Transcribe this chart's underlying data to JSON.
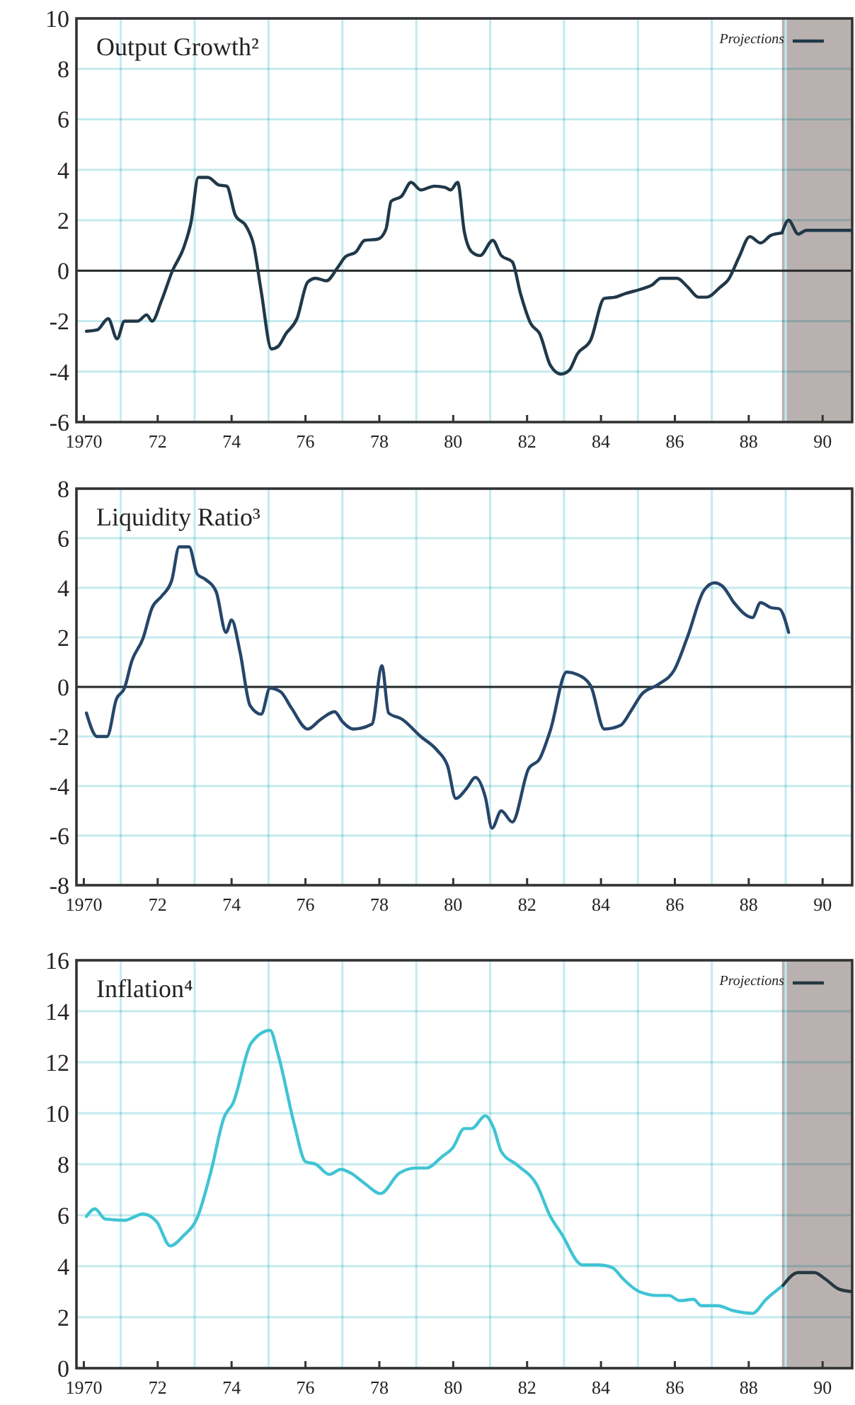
{
  "chart_data": [
    {
      "type": "line",
      "title": "Output Growth²",
      "xlim": [
        1969.8,
        1990.8
      ],
      "xticks": [
        {
          "value": 1970,
          "label": "1970"
        },
        {
          "value": 1971,
          "label": null
        },
        {
          "value": 1972,
          "label": "72"
        },
        {
          "value": 1973,
          "label": null
        },
        {
          "value": 1974,
          "label": "74"
        },
        {
          "value": 1975,
          "label": null
        },
        {
          "value": 1976,
          "label": "76"
        },
        {
          "value": 1977,
          "label": null
        },
        {
          "value": 1978,
          "label": "78"
        },
        {
          "value": 1979,
          "label": null
        },
        {
          "value": 1980,
          "label": "80"
        },
        {
          "value": 1981,
          "label": null
        },
        {
          "value": 1982,
          "label": "82"
        },
        {
          "value": 1983,
          "label": null
        },
        {
          "value": 1984,
          "label": "84"
        },
        {
          "value": 1985,
          "label": null
        },
        {
          "value": 1986,
          "label": "86"
        },
        {
          "value": 1987,
          "label": null
        },
        {
          "value": 1988,
          "label": "88"
        },
        {
          "value": 1989,
          "label": null
        },
        {
          "value": 1990,
          "label": "90"
        }
      ],
      "ylim": [
        -6,
        10
      ],
      "yticks": [
        -6,
        -4,
        -2,
        0,
        2,
        4,
        6,
        8,
        10
      ],
      "grid": true,
      "legend": "top right",
      "ref_lines": [
        {
          "axis": "y",
          "value": 0,
          "color": "#2a2a2a"
        }
      ],
      "bands": [
        {
          "axis": "x",
          "from": 1988.9,
          "to": 1990.8,
          "color": "#b9b1b0"
        }
      ],
      "series": [
        {
          "color": "#203848",
          "x": [
            1970.07,
            1970.36,
            1970.66,
            1970.9,
            1971.1,
            1971.46,
            1971.7,
            1971.85,
            1972.1,
            1972.4,
            1972.7,
            1972.9,
            1973.1,
            1973.36,
            1973.65,
            1973.87,
            1974.1,
            1974.4,
            1974.6,
            1974.8,
            1975.08,
            1975.26,
            1975.47,
            1975.77,
            1976.06,
            1976.28,
            1976.57,
            1976.86,
            1977.08,
            1977.37,
            1977.6,
            1977.96,
            1978.18,
            1978.32,
            1978.6,
            1978.86,
            1979.12,
            1979.49,
            1979.78,
            1979.93,
            1980.12,
            1980.3,
            1980.5,
            1980.73,
            1981.07,
            1981.3,
            1981.6,
            1981.82,
            1982.1,
            1982.34,
            1982.63,
            1982.92,
            1983.14,
            1983.36,
            1983.72,
            1984.09,
            1984.38,
            1984.67,
            1985.04,
            1985.4,
            1985.62,
            1986.06,
            1986.35,
            1986.64,
            1986.86,
            1987.23,
            1987.45,
            1987.74,
            1988.03,
            1988.32,
            1988.6,
            1988.9
          ],
          "values": [
            -2.4,
            -2.35,
            -1.9,
            -2.7,
            -2.0,
            -2.0,
            -1.75,
            -2.0,
            -1.2,
            0,
            0.9,
            1.9,
            3.7,
            3.7,
            3.4,
            3.35,
            2.2,
            1.75,
            1.0,
            -0.8,
            -3.1,
            -3.0,
            -2.5,
            -1.9,
            -0.45,
            -0.3,
            -0.4,
            0.1,
            0.55,
            0.75,
            1.2,
            1.25,
            1.65,
            2.75,
            2.95,
            3.5,
            3.2,
            3.35,
            3.3,
            3.2,
            3.5,
            1.55,
            0.75,
            0.6,
            1.2,
            0.6,
            0.35,
            -0.9,
            -2.1,
            -2.5,
            -3.75,
            -4.1,
            -3.95,
            -3.3,
            -2.75,
            -1.1,
            -1.05,
            -0.9,
            -0.75,
            -0.55,
            -0.3,
            -0.3,
            -0.65,
            -1.05,
            -1.05,
            -0.65,
            -0.35,
            0.55,
            1.35,
            1.1,
            1.4,
            1.5
          ]
        },
        {
          "name": "Projections",
          "color": "#203848",
          "x": [
            1988.9,
            1989.08,
            1989.34,
            1989.56,
            1990.8
          ],
          "values": [
            1.5,
            2.0,
            1.45,
            1.6,
            1.6
          ]
        }
      ]
    },
    {
      "type": "line",
      "title": "Liquidity Ratio³",
      "xlim": [
        1969.8,
        1990.8
      ],
      "xticks": [
        {
          "value": 1970,
          "label": "1970"
        },
        {
          "value": 1971,
          "label": null
        },
        {
          "value": 1972,
          "label": "72"
        },
        {
          "value": 1973,
          "label": null
        },
        {
          "value": 1974,
          "label": "74"
        },
        {
          "value": 1975,
          "label": null
        },
        {
          "value": 1976,
          "label": "76"
        },
        {
          "value": 1977,
          "label": null
        },
        {
          "value": 1978,
          "label": "78"
        },
        {
          "value": 1979,
          "label": null
        },
        {
          "value": 1980,
          "label": "80"
        },
        {
          "value": 1981,
          "label": null
        },
        {
          "value": 1982,
          "label": "82"
        },
        {
          "value": 1983,
          "label": null
        },
        {
          "value": 1984,
          "label": "84"
        },
        {
          "value": 1985,
          "label": null
        },
        {
          "value": 1986,
          "label": "86"
        },
        {
          "value": 1987,
          "label": null
        },
        {
          "value": 1988,
          "label": "88"
        },
        {
          "value": 1989,
          "label": null
        },
        {
          "value": 1990,
          "label": "90"
        }
      ],
      "ylim": [
        -8,
        8
      ],
      "yticks": [
        -8,
        -6,
        -4,
        -2,
        0,
        2,
        4,
        6,
        8
      ],
      "grid": true,
      "ref_lines": [
        {
          "axis": "y",
          "value": 0,
          "color": "#2a2a2a"
        }
      ],
      "series": [
        {
          "color": "#26466a",
          "x": [
            1970.07,
            1970.36,
            1970.63,
            1970.88,
            1971.1,
            1971.3,
            1971.6,
            1971.85,
            1972.1,
            1972.38,
            1972.58,
            1972.85,
            1973.07,
            1973.28,
            1973.58,
            1973.85,
            1974.0,
            1974.23,
            1974.5,
            1974.8,
            1975.04,
            1975.33,
            1975.62,
            1976.06,
            1976.42,
            1976.79,
            1977.0,
            1977.3,
            1977.8,
            1978.07,
            1978.25,
            1978.61,
            1979.12,
            1979.56,
            1979.85,
            1980.07,
            1980.36,
            1980.6,
            1980.87,
            1981.05,
            1981.3,
            1981.6,
            1982.04,
            1982.34,
            1982.63,
            1983.07,
            1983.36,
            1983.72,
            1984.09,
            1984.53,
            1984.82,
            1985.1,
            1985.55,
            1985.99,
            1986.35,
            1986.79,
            1987.08,
            1987.3,
            1987.6,
            1988.1,
            1988.32,
            1988.6,
            1988.83,
            1989.08
          ],
          "values": [
            -1.05,
            -2.0,
            -2.0,
            -0.5,
            -0.05,
            1.05,
            1.95,
            3.2,
            3.65,
            4.3,
            5.65,
            5.65,
            4.55,
            4.35,
            3.85,
            2.2,
            2.7,
            1.4,
            -0.75,
            -1.1,
            -0.05,
            -0.2,
            -0.85,
            -1.7,
            -1.3,
            -1.0,
            -1.4,
            -1.7,
            -1.5,
            0.85,
            -1.05,
            -1.3,
            -2.0,
            -2.55,
            -3.2,
            -4.5,
            -4.1,
            -3.65,
            -4.45,
            -5.7,
            -5.0,
            -5.45,
            -3.3,
            -2.9,
            -1.75,
            0.6,
            0.5,
            0.05,
            -1.7,
            -1.55,
            -0.95,
            -0.3,
            0.1,
            0.7,
            2.05,
            3.9,
            4.2,
            4.05,
            3.4,
            2.8,
            3.4,
            3.2,
            3.15,
            2.2
          ]
        }
      ]
    },
    {
      "type": "line",
      "title": "Inflation⁴",
      "xlim": [
        1969.8,
        1990.8
      ],
      "xticks": [
        {
          "value": 1970,
          "label": "1970"
        },
        {
          "value": 1971,
          "label": null
        },
        {
          "value": 1972,
          "label": "72"
        },
        {
          "value": 1973,
          "label": null
        },
        {
          "value": 1974,
          "label": "74"
        },
        {
          "value": 1975,
          "label": null
        },
        {
          "value": 1976,
          "label": "76"
        },
        {
          "value": 1977,
          "label": null
        },
        {
          "value": 1978,
          "label": "78"
        },
        {
          "value": 1979,
          "label": null
        },
        {
          "value": 1980,
          "label": "80"
        },
        {
          "value": 1981,
          "label": null
        },
        {
          "value": 1982,
          "label": "82"
        },
        {
          "value": 1983,
          "label": null
        },
        {
          "value": 1984,
          "label": "84"
        },
        {
          "value": 1985,
          "label": null
        },
        {
          "value": 1986,
          "label": "86"
        },
        {
          "value": 1987,
          "label": null
        },
        {
          "value": 1988,
          "label": "88"
        },
        {
          "value": 1989,
          "label": null
        },
        {
          "value": 1990,
          "label": "90"
        }
      ],
      "ylim": [
        0,
        16
      ],
      "yticks": [
        0,
        2,
        4,
        6,
        8,
        10,
        12,
        14,
        16
      ],
      "grid": true,
      "legend": "top right",
      "bands": [
        {
          "axis": "x",
          "from": 1988.9,
          "to": 1990.8,
          "color": "#b9b1b0"
        }
      ],
      "series": [
        {
          "color": "#40c4d4",
          "x": [
            1970.07,
            1970.3,
            1970.58,
            1971.1,
            1971.6,
            1971.97,
            1972.34,
            1972.7,
            1973.07,
            1973.43,
            1973.8,
            1974.04,
            1974.53,
            1975.04,
            1975.26,
            1975.7,
            1976.0,
            1976.28,
            1976.64,
            1976.96,
            1977.23,
            1977.6,
            1978.03,
            1978.54,
            1978.98,
            1979.27,
            1979.7,
            1979.99,
            1980.3,
            1980.5,
            1980.87,
            1981.1,
            1981.3,
            1981.75,
            1982.26,
            1982.63,
            1982.92,
            1983.5,
            1983.94,
            1984.3,
            1984.6,
            1985.04,
            1985.55,
            1985.84,
            1986.13,
            1986.5,
            1986.72,
            1987.15,
            1987.6,
            1988.1,
            1988.47,
            1988.93
          ],
          "values": [
            5.95,
            6.25,
            5.85,
            5.8,
            6.05,
            5.75,
            4.8,
            5.2,
            5.9,
            7.65,
            9.85,
            10.4,
            12.75,
            13.25,
            12.3,
            9.55,
            8.1,
            8.0,
            7.6,
            7.8,
            7.65,
            7.25,
            6.85,
            7.65,
            7.85,
            7.85,
            8.3,
            8.65,
            9.4,
            9.4,
            9.9,
            9.4,
            8.5,
            7.95,
            7.2,
            5.95,
            5.3,
            4.05,
            4.05,
            3.95,
            3.5,
            3.0,
            2.85,
            2.85,
            2.65,
            2.7,
            2.45,
            2.45,
            2.25,
            2.15,
            2.7,
            3.25
          ]
        },
        {
          "name": "Projections",
          "color": "#263840",
          "x": [
            1988.93,
            1989.34,
            1989.78,
            1990.07,
            1990.44,
            1990.8
          ],
          "values": [
            3.25,
            3.75,
            3.75,
            3.5,
            3.1,
            3.0
          ]
        }
      ]
    }
  ]
}
